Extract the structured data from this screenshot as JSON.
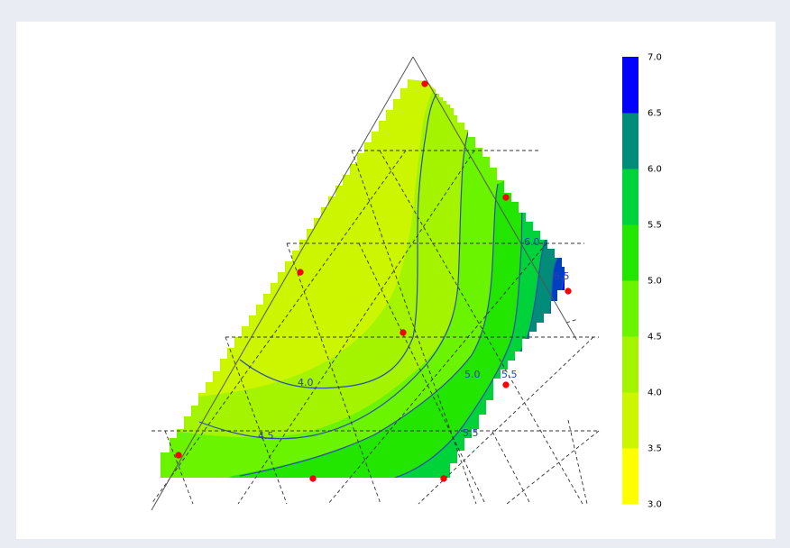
{
  "chart_data": {
    "type": "ternary-contour",
    "title": "",
    "color_scale": {
      "min": 3.0,
      "max": 7.0,
      "tick_labels": [
        "3.0",
        "3.5",
        "4.0",
        "4.5",
        "5.0",
        "5.5",
        "6.0",
        "6.5",
        "7.0"
      ],
      "band_colors": [
        "#ffff00",
        "#ccf500",
        "#a4f400",
        "#6af400",
        "#22e600",
        "#00d23a",
        "#008c78",
        "#0040c0",
        "#0000ff"
      ],
      "legend_position": "right"
    },
    "contour_levels": [
      {
        "value": 4.0,
        "label": "4.0"
      },
      {
        "value": 4.5,
        "label": "4.5"
      },
      {
        "value": 5.0,
        "label": "5.0"
      },
      {
        "value": 5.5,
        "label": "5.5"
      },
      {
        "value": 6.0,
        "label": "6.0"
      },
      {
        "value": 6.5,
        "label": "6.5"
      }
    ],
    "design_points": [
      {
        "a": 0.97,
        "b": 0.03,
        "c": 0.0
      },
      {
        "a": 0.74,
        "b": 0.0,
        "c": 0.26
      },
      {
        "a": 0.49,
        "b": 0.47,
        "c": 0.04
      },
      {
        "a": 0.49,
        "b": 0.0,
        "c": 0.51
      },
      {
        "a": 0.38,
        "b": 0.34,
        "c": 0.28
      },
      {
        "a": 0.1,
        "b": 0.55,
        "c": 0.35
      },
      {
        "a": 0.03,
        "b": 0.96,
        "c": 0.01
      },
      {
        "a": 0.0,
        "b": 0.65,
        "c": 0.35
      },
      {
        "a": 0.0,
        "b": 0.31,
        "c": 0.69
      }
    ],
    "grid": true,
    "grid_style": "dashed"
  }
}
